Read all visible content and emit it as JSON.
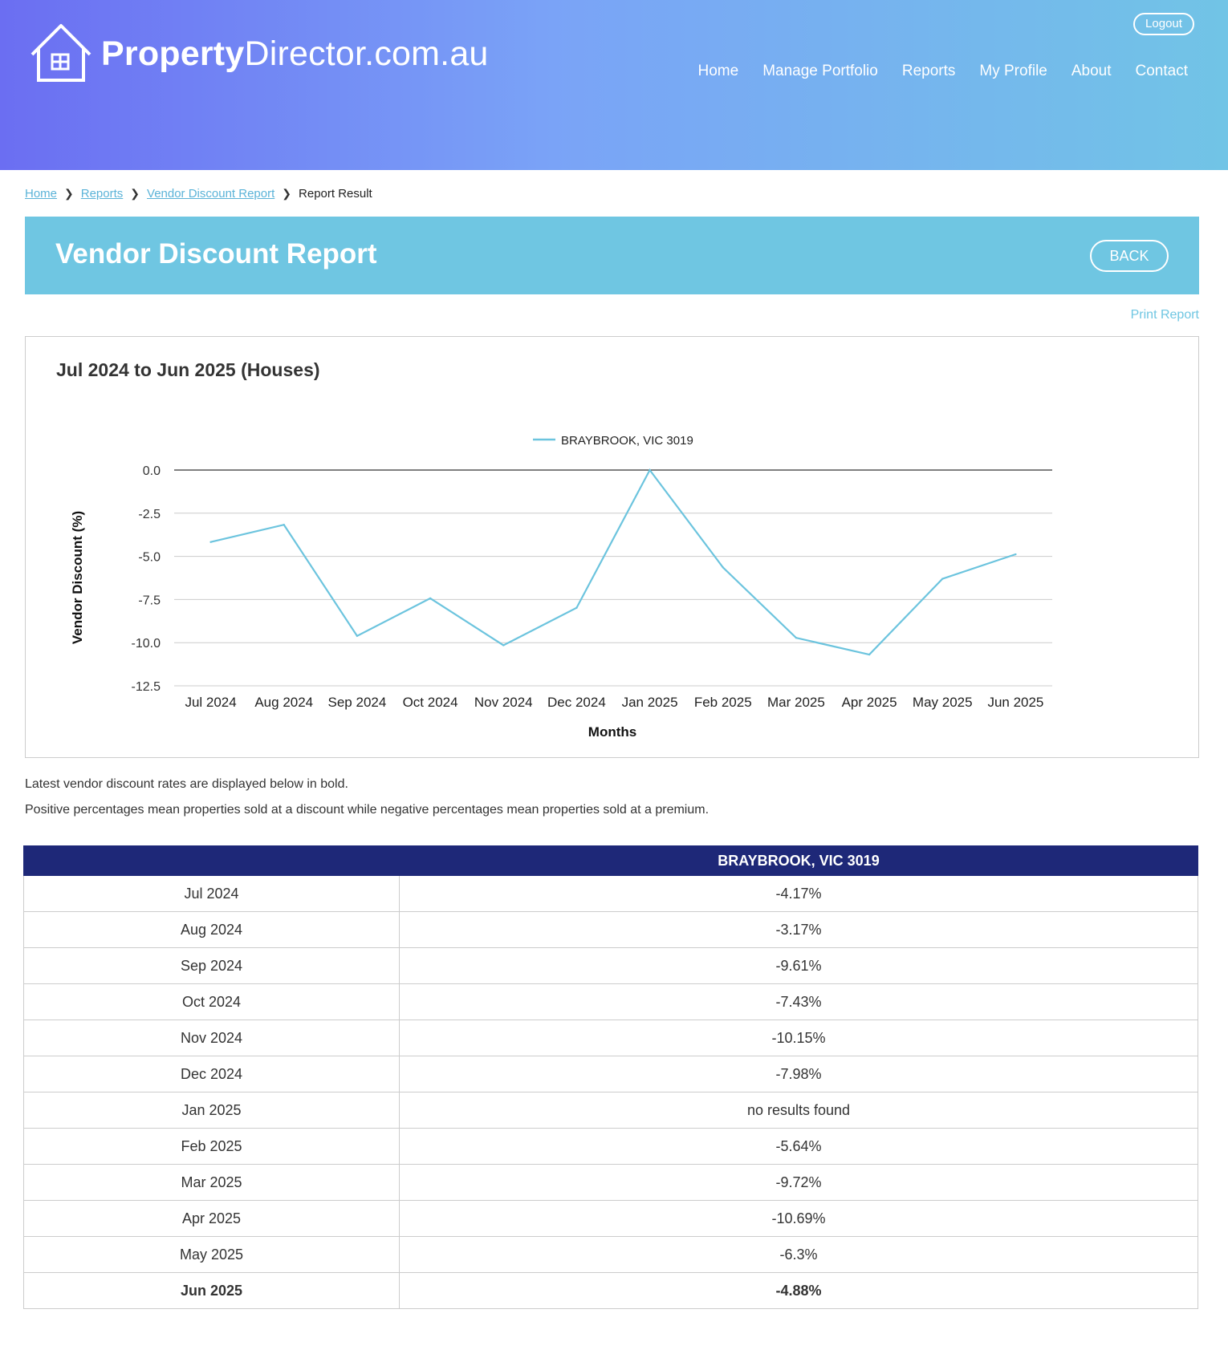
{
  "brand": {
    "name_bold": "Property",
    "name_rest": "Director.com.au"
  },
  "header": {
    "logout_label": "Logout",
    "nav": [
      "Home",
      "Manage Portfolio",
      "Reports",
      "My Profile",
      "About",
      "Contact"
    ]
  },
  "breadcrumb": {
    "items": [
      "Home",
      "Reports",
      "Vendor Discount Report"
    ],
    "current": "Report Result"
  },
  "report": {
    "title": "Vendor Discount Report",
    "back_label": "BACK",
    "print_label": "Print Report"
  },
  "chart_data": {
    "type": "line",
    "title": "Jul 2024 to Jun 2025 (Houses)",
    "xlabel": "Months",
    "ylabel": "Vendor Discount (%)",
    "categories": [
      "Jul 2024",
      "Aug 2024",
      "Sep 2024",
      "Oct 2024",
      "Nov 2024",
      "Dec 2024",
      "Jan 2025",
      "Feb 2025",
      "Mar 2025",
      "Apr 2025",
      "May 2025",
      "Jun 2025"
    ],
    "series": [
      {
        "name": "BRAYBROOK, VIC 3019",
        "color": "#6cc4de",
        "values": [
          -4.17,
          -3.17,
          -9.61,
          -7.43,
          -10.15,
          -7.98,
          0,
          -5.64,
          -9.72,
          -10.69,
          -6.3,
          -4.88
        ]
      }
    ],
    "yticks": [
      "0.0",
      "-2.5",
      "-5.0",
      "-7.5",
      "-10.0",
      "-12.5"
    ],
    "ylim": [
      -12.5,
      0
    ],
    "grid": true,
    "legend": "top-center"
  },
  "notes": [
    "Latest vendor discount rates are displayed below in bold.",
    "Positive percentages mean properties sold at a discount while negative percentages mean properties sold at a premium."
  ],
  "table": {
    "headers": [
      "",
      "BRAYBROOK, VIC 3019"
    ],
    "rows": [
      [
        "Jul 2024",
        "-4.17%"
      ],
      [
        "Aug 2024",
        "-3.17%"
      ],
      [
        "Sep 2024",
        "-9.61%"
      ],
      [
        "Oct 2024",
        "-7.43%"
      ],
      [
        "Nov 2024",
        "-10.15%"
      ],
      [
        "Dec 2024",
        "-7.98%"
      ],
      [
        "Jan 2025",
        "no results found"
      ],
      [
        "Feb 2025",
        "-5.64%"
      ],
      [
        "Mar 2025",
        "-9.72%"
      ],
      [
        "Apr 2025",
        "-10.69%"
      ],
      [
        "May 2025",
        "-6.3%"
      ],
      [
        "Jun 2025",
        "-4.88%"
      ]
    ]
  },
  "colors": {
    "header_start": "#6b6ef2",
    "header_end": "#71c4e6",
    "title_bar": "#6fc6e2",
    "table_header": "#1e2878",
    "line": "#6cc4de"
  }
}
